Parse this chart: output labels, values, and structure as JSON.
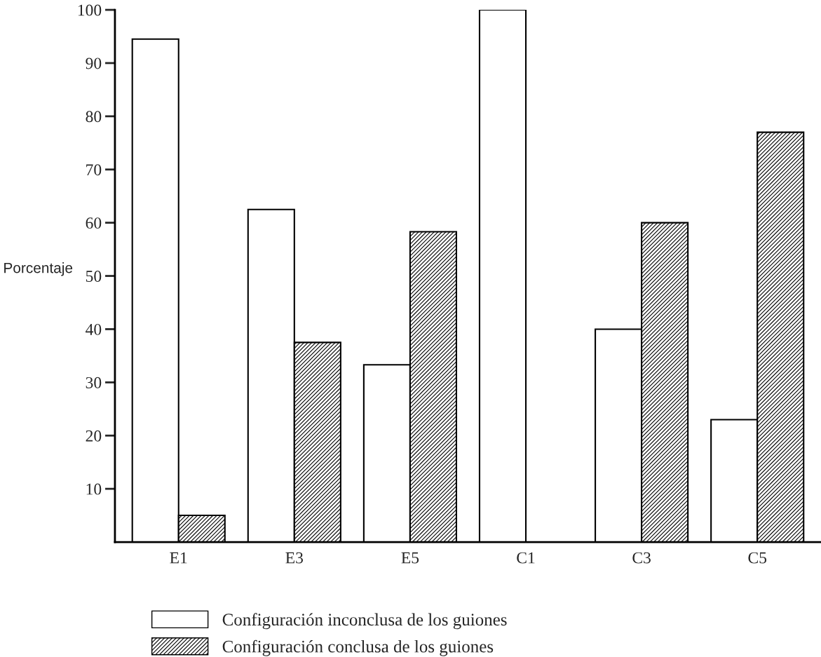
{
  "chart_data": {
    "type": "bar",
    "ylabel": "Porcentaje",
    "categories": [
      "E1",
      "E3",
      "E5",
      "C1",
      "C3",
      "C5"
    ],
    "series": [
      {
        "name": "Configuración inconclusa de los guiones",
        "color": "#ffffff",
        "values": [
          94.5,
          62.5,
          33.3,
          100,
          40,
          23
        ]
      },
      {
        "name": "Configuración conclusa de los guiones",
        "color": "#000000",
        "values": [
          5,
          37.5,
          58.3,
          0,
          60,
          77
        ]
      }
    ],
    "ylim": [
      0,
      100
    ],
    "yticks": [
      10,
      20,
      30,
      40,
      50,
      60,
      70,
      80,
      90,
      100
    ],
    "grid": false,
    "legend": "bottom"
  }
}
